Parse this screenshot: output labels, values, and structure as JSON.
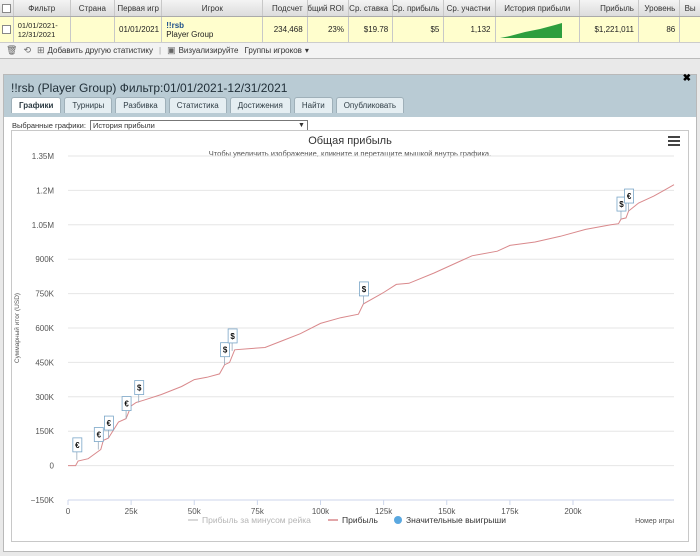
{
  "top_table": {
    "headers": [
      "Фильтр",
      "Страна",
      "Первая игр",
      "Игрок",
      "Подсчет",
      "Общий ROI",
      "Ср. ставка",
      "Ср. прибыль",
      "Ср. участни",
      "История прибыли",
      "Прибыль",
      "Уровень",
      "Вы"
    ],
    "row": {
      "filter": "01/01/2021-12/31/2021",
      "country": "",
      "first_game": "01/01/2021",
      "player_name": "!!rsb",
      "player_sub": "Player Group",
      "count": "234,468",
      "roi": "23%",
      "avg_stake": "$19.78",
      "avg_profit": "$5",
      "avg_participants": "1,132",
      "profit": "$1,221,011",
      "level": "86"
    }
  },
  "toolbar": {
    "add_stat": "Добавить другую статистику",
    "visualize": "Визуализируйте",
    "player_groups": "Группы игроков"
  },
  "panel": {
    "title": "!!rsb (Player Group) Фильтр:01/01/2021-12/31/2021",
    "tabs": [
      "Графики",
      "Турниры",
      "Разбивка",
      "Статистика",
      "Достижения",
      "Найти",
      "Опубликовать"
    ],
    "select_label": "Выбранные графики:",
    "select_value": "История прибыли"
  },
  "chart_data": {
    "type": "line",
    "title": "Общая прибыль",
    "subtitle": "Чтобы увеличить изображение, кликните и перетащите мышкой внутрь графика.",
    "ylabel": "Суммарный итог (USD)",
    "xlabel": "Номер игры",
    "xlim": [
      0,
      240000
    ],
    "ylim": [
      -150000,
      1350000
    ],
    "x_ticks": [
      "0",
      "25k",
      "50k",
      "75k",
      "100k",
      "125k",
      "150k",
      "175k",
      "200k"
    ],
    "x_tick_values": [
      0,
      25000,
      50000,
      75000,
      100000,
      125000,
      150000,
      175000,
      200000
    ],
    "y_ticks": [
      "−150K",
      "0",
      "150K",
      "300K",
      "450K",
      "600K",
      "750K",
      "900K",
      "1.05M",
      "1.2M",
      "1.35M"
    ],
    "y_tick_values": [
      -150000,
      0,
      150000,
      300000,
      450000,
      600000,
      750000,
      900000,
      1050000,
      1200000,
      1350000
    ],
    "series": [
      {
        "name": "Прибыль",
        "color": "#d9898c",
        "points": [
          [
            0,
            0
          ],
          [
            3000,
            0
          ],
          [
            4000,
            20000
          ],
          [
            8000,
            30000
          ],
          [
            13000,
            70000
          ],
          [
            14000,
            110000
          ],
          [
            16000,
            120000
          ],
          [
            20000,
            190000
          ],
          [
            23000,
            205000
          ],
          [
            25000,
            260000
          ],
          [
            27000,
            275000
          ],
          [
            30000,
            285000
          ],
          [
            37000,
            310000
          ],
          [
            45000,
            345000
          ],
          [
            50000,
            375000
          ],
          [
            55000,
            385000
          ],
          [
            60000,
            400000
          ],
          [
            62000,
            440000
          ],
          [
            64000,
            450000
          ],
          [
            66000,
            505000
          ],
          [
            72000,
            510000
          ],
          [
            78000,
            515000
          ],
          [
            85000,
            545000
          ],
          [
            92000,
            575000
          ],
          [
            100000,
            620000
          ],
          [
            108000,
            645000
          ],
          [
            115000,
            660000
          ],
          [
            117000,
            705000
          ],
          [
            125000,
            755000
          ],
          [
            130000,
            790000
          ],
          [
            135000,
            795000
          ],
          [
            145000,
            840000
          ],
          [
            155000,
            890000
          ],
          [
            160000,
            915000
          ],
          [
            170000,
            935000
          ],
          [
            175000,
            960000
          ],
          [
            185000,
            975000
          ],
          [
            195000,
            1000000
          ],
          [
            205000,
            1030000
          ],
          [
            215000,
            1050000
          ],
          [
            218000,
            1055000
          ],
          [
            219000,
            1075000
          ],
          [
            221000,
            1080000
          ],
          [
            222000,
            1110000
          ],
          [
            226000,
            1145000
          ],
          [
            232000,
            1175000
          ],
          [
            236000,
            1200000
          ],
          [
            240000,
            1225000
          ]
        ]
      }
    ],
    "legend": [
      "Прибыль за минусом рейка",
      "Прибыль",
      "Значительные выигрыши"
    ],
    "legend_colors": [
      "#cccccc",
      "#d9898c",
      "#5aa8e0"
    ],
    "legend_placement": "bottom",
    "flags": [
      {
        "x": 3500,
        "y": 25000,
        "label": "€"
      },
      {
        "x": 12000,
        "y": 70000,
        "label": "€"
      },
      {
        "x": 16000,
        "y": 120000,
        "label": "€"
      },
      {
        "x": 23000,
        "y": 205000,
        "label": "€"
      },
      {
        "x": 28000,
        "y": 275000,
        "label": "$"
      },
      {
        "x": 62000,
        "y": 440000,
        "label": "$"
      },
      {
        "x": 65000,
        "y": 500000,
        "label": "$"
      },
      {
        "x": 117000,
        "y": 705000,
        "label": "$"
      },
      {
        "x": 219000,
        "y": 1075000,
        "label": "$"
      },
      {
        "x": 222000,
        "y": 1110000,
        "label": "€"
      }
    ]
  }
}
